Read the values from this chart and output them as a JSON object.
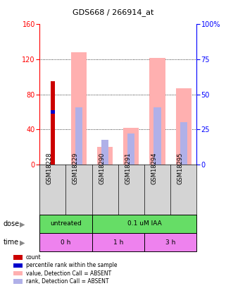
{
  "title": "GDS668 / 266914_at",
  "samples": [
    "GSM18228",
    "GSM18229",
    "GSM18290",
    "GSM18291",
    "GSM18294",
    "GSM18295"
  ],
  "count_values": [
    95,
    0,
    0,
    0,
    0,
    0
  ],
  "percentile_rank_values": [
    60,
    0,
    0,
    0,
    0,
    0
  ],
  "absent_value_bars": [
    0,
    128,
    20,
    42,
    122,
    87
  ],
  "absent_rank_bars": [
    0,
    65,
    28,
    35,
    65,
    48
  ],
  "left_ylim": [
    0,
    160
  ],
  "right_ylim": [
    0,
    100
  ],
  "left_yticks": [
    0,
    40,
    80,
    120,
    160
  ],
  "right_yticks": [
    0,
    25,
    50,
    75,
    100
  ],
  "right_yticklabels": [
    "0",
    "25",
    "50",
    "75",
    "100%"
  ],
  "dose_label": "dose",
  "time_label": "time",
  "color_count": "#cc0000",
  "color_rank": "#0000cc",
  "color_absent_value": "#ffb0b0",
  "color_absent_rank": "#b0b0e8",
  "color_sample_bg": "#d4d4d4",
  "color_dose_bg": "#66dd66",
  "color_time_bg": "#ee82ee",
  "legend_items": [
    "count",
    "percentile rank within the sample",
    "value, Detection Call = ABSENT",
    "rank, Detection Call = ABSENT"
  ]
}
